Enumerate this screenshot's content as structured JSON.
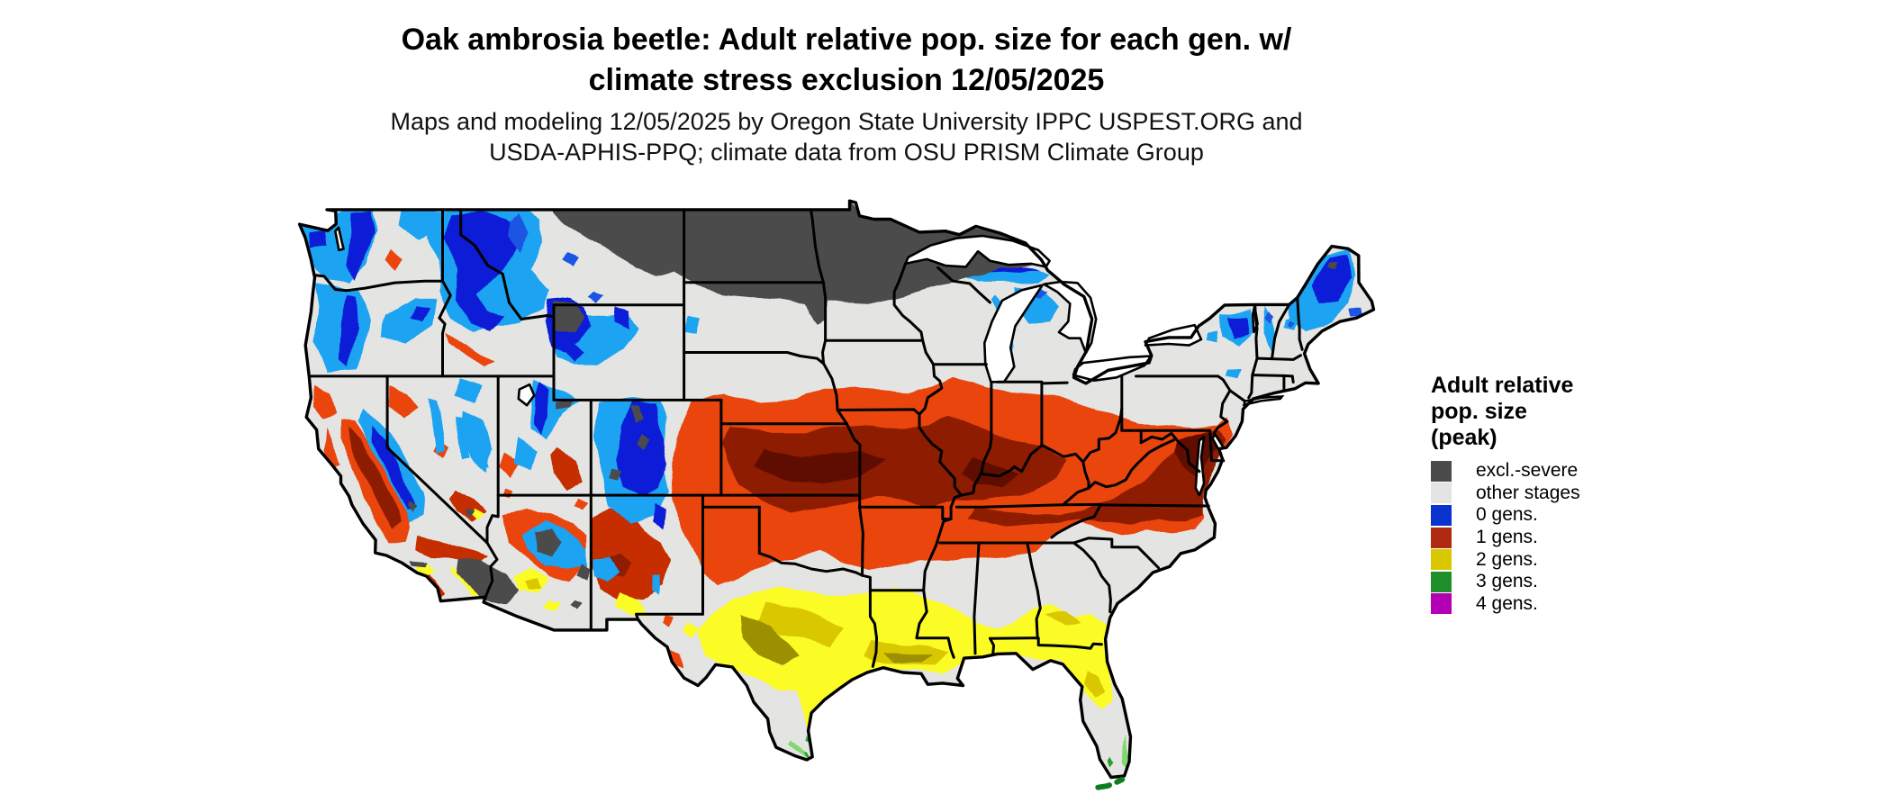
{
  "figure": {
    "title_line1": "Oak ambrosia beetle: Adult relative pop. size for each gen. w/",
    "title_line2": "climate stress exclusion 12/05/2025",
    "subtitle_line1": "Maps and modeling 12/05/2025 by Oregon State University IPPC USPEST.ORG and",
    "subtitle_line2": "USDA-APHIS-PPQ; climate data from OSU PRISM Climate Group"
  },
  "legend": {
    "title_line1": "Adult relative",
    "title_line2": "pop. size",
    "title_line3": "(peak)",
    "items": [
      {
        "label": "excl.-severe",
        "color": "#4b4b4b"
      },
      {
        "label": "other stages",
        "color": "#e4e5e2"
      },
      {
        "label": "0 gens.",
        "color": "#0a32cf"
      },
      {
        "label": "1 gens.",
        "color": "#b02a12"
      },
      {
        "label": "2 gens.",
        "color": "#d9c800"
      },
      {
        "label": "3 gens.",
        "color": "#1e8f2a"
      },
      {
        "label": "4 gens.",
        "color": "#b400b4"
      }
    ]
  },
  "map": {
    "region": "Contiguous United States",
    "date_shown": "12/05/2025",
    "palette": {
      "base": "#e4e5e2",
      "gray": "#4b4b4b",
      "blue_deep": "#0b1fd6",
      "blue_mid": "#1d55e2",
      "cyan": "#1aa3f2",
      "red_orange": "#ea4511",
      "red": "#c62d06",
      "maroon": "#8e1a00",
      "maroon_dark": "#5f1000",
      "yellow": "#fbfb28",
      "gold": "#d9c800",
      "olive": "#9c9000",
      "green": "#23a12e",
      "green_light": "#7fd96e",
      "green_dark": "#0e7d20",
      "water": "#ffffff",
      "border": "#000000"
    },
    "classes": [
      {
        "label": "excl.-severe",
        "color": "#4b4b4b",
        "coverage": "North Dakota, northern Minnesota, northeastern Montana, northern South Dakota, far northern Wisconsin and western Upper Michigan; Yellowstone, high Colorado Rockies, Uinta Mountains, northern Arizona plateau, and the hot Yuma/low-desert of SW Arizona and SE California"
      },
      {
        "label": "other stages",
        "color": "#e4e5e2",
        "coverage": "background over much of the interior West, Iowa-Wisconsin-Michigan belt, Appalachians (WV, E KY), Ozark/Ouachita area, Oklahoma, south Texas interior, central Florida peninsula, SC and coastal New England"
      },
      {
        "label": "0 gens.",
        "color": "#0a32cf",
        "coverage": "Cascades and Olympics, northern Rockies of Idaho/western Montana, Sierra Nevada, Wasatch, Colorado Rockies, Great Basin ranges, Great Lakes snow-belt shores, Adirondacks, northern New England and Maine"
      },
      {
        "label": "1 gens.",
        "color": "#b02a12",
        "coverage": "broad band from eastern Colorado/Kansas through Missouri, southern Illinois-Indiana-Ohio, Kentucky, Tennessee to Virginia, Maryland-Delaware coast and northern North Carolina; California Central Valley; mid-elevation Arizona and New Mexico"
      },
      {
        "label": "2 gens.",
        "color": "#d9c800",
        "coverage": "central and coastal Texas, Louisiana, southern Mississippi-Alabama, southern Georgia, northern Florida; Phoenix-Tucson deserts, El Paso area, southern California basins"
      },
      {
        "label": "3 gens.",
        "color": "#1e8f2a",
        "coverage": "lower Rio Grande valley of south Texas, southeast Florida coast and the Florida Keys"
      },
      {
        "label": "4 gens.",
        "color": "#b400b4",
        "coverage": "none visible on the map (legend entry only)"
      }
    ]
  }
}
